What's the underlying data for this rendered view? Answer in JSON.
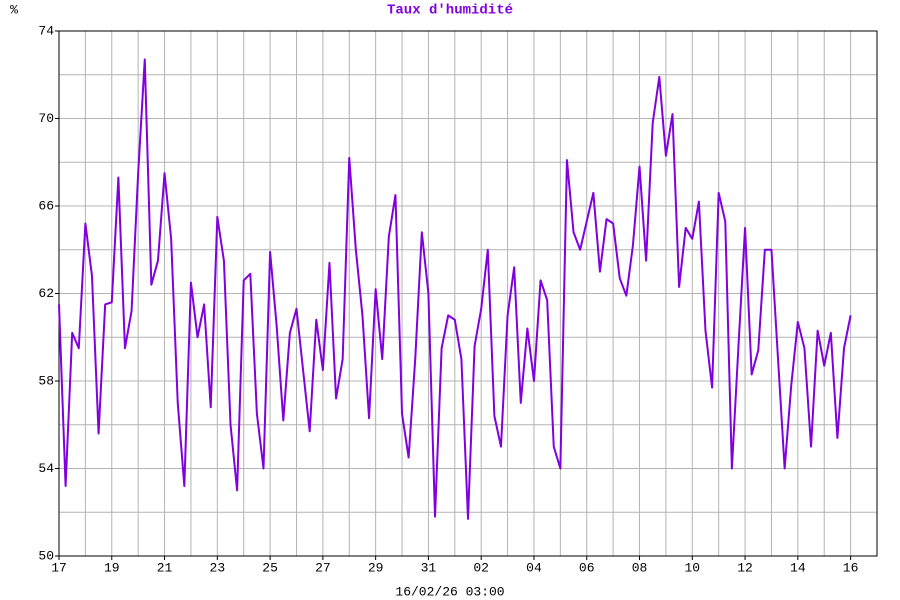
{
  "chart_data": {
    "type": "line",
    "title": "Taux d'humidité",
    "ylabel": "%",
    "xlabel": "16/02/26 03:00",
    "series": [
      {
        "color": "#8000e0",
        "values": [
          61.5,
          53.2,
          60.2,
          59.5,
          65.2,
          62.8,
          55.6,
          61.5,
          61.6,
          67.3,
          59.5,
          61.2,
          67.5,
          72.7,
          62.4,
          63.5,
          67.5,
          64.5,
          57,
          53.2,
          62.5,
          60,
          61.5,
          56.8,
          65.5,
          63.5,
          56,
          53,
          62.6,
          62.9,
          56.5,
          54,
          63.9,
          60.5,
          56.2,
          60.2,
          61.3,
          58.5,
          55.7,
          60.8,
          58.5,
          63.4,
          57.2,
          59,
          68.2,
          64,
          61,
          56.3,
          62.2,
          59,
          64.6,
          66.5,
          56.5,
          54.5,
          59,
          64.8,
          62,
          51.8,
          59.5,
          61,
          60.8,
          59,
          51.7,
          59.6,
          61.3,
          64,
          56.4,
          55,
          61,
          63.2,
          57,
          60.4,
          58,
          62.6,
          61.7,
          55,
          54,
          68.1,
          64.8,
          64,
          65.3,
          66.6,
          63,
          65.4,
          65.2,
          62.7,
          61.9,
          64.2,
          67.8,
          63.5,
          69.8,
          71.9,
          68.3,
          70.2,
          62.3,
          65,
          64.5,
          66.2,
          60.3,
          57.7,
          66.6,
          65.3,
          54,
          59.6,
          65,
          58.3,
          59.4,
          64,
          64,
          59,
          54,
          57.8,
          60.7,
          59.5,
          55,
          60.3,
          58.7,
          60.2,
          55.4,
          59.5,
          61
        ]
      }
    ],
    "xlim": [
      0,
      124
    ],
    "xticks": [
      {
        "value": 0,
        "label": "17"
      },
      {
        "value": 8,
        "label": "19"
      },
      {
        "value": 16,
        "label": "21"
      },
      {
        "value": 24,
        "label": "23"
      },
      {
        "value": 32,
        "label": "25"
      },
      {
        "value": 40,
        "label": "27"
      },
      {
        "value": 48,
        "label": "29"
      },
      {
        "value": 56,
        "label": "31"
      },
      {
        "value": 64,
        "label": "02"
      },
      {
        "value": 72,
        "label": "04"
      },
      {
        "value": 80,
        "label": "06"
      },
      {
        "value": 88,
        "label": "08"
      },
      {
        "value": 96,
        "label": "10"
      },
      {
        "value": 104,
        "label": "12"
      },
      {
        "value": 112,
        "label": "14"
      },
      {
        "value": 120,
        "label": "16"
      }
    ],
    "minor_xticks": [
      4,
      12,
      20,
      28,
      36,
      44,
      52,
      60,
      68,
      76,
      84,
      92,
      100,
      108,
      116,
      124
    ],
    "ylim": [
      50,
      74
    ],
    "yticks": [
      50,
      54,
      58,
      62,
      66,
      70,
      74
    ],
    "minor_yticks": [
      52,
      56,
      60,
      64,
      68,
      72
    ],
    "grid": true
  }
}
